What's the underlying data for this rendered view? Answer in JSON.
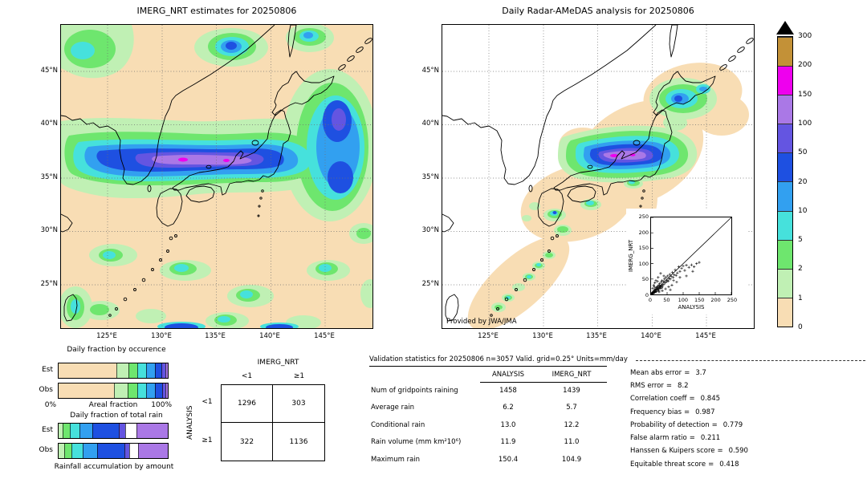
{
  "colorbar": {
    "units": "mm/day",
    "tick_labels": [
      "300",
      "200",
      "150",
      "100",
      "50",
      "20",
      "10",
      "5",
      "2",
      "1",
      "0"
    ],
    "colors_low_to_high": [
      "#f8ddb4",
      "#c0f0b4",
      "#6ee66e",
      "#46e1dc",
      "#32a0f0",
      "#1e50e1",
      "#6455e1",
      "#aa78e6",
      "#ee00ee",
      "#c39137"
    ],
    "overflow_color": "#000000"
  },
  "inset": {
    "x_ticks": [
      "0",
      "50",
      "100",
      "150",
      "200",
      "250"
    ],
    "y_ticks": [
      "0",
      "50",
      "100",
      "150",
      "200",
      "250"
    ]
  },
  "eq": "=",
  "chart_data": [
    {
      "type": "heatmap",
      "title": "IMERG_NRT estimates for 20250806",
      "x_ticks": [
        "125°E",
        "130°E",
        "135°E",
        "140°E",
        "145°E"
      ],
      "y_ticks": [
        "45°N",
        "40°N",
        "35°N",
        "30°N",
        "25°N"
      ],
      "levels_mm_per_day": [
        0,
        1,
        2,
        5,
        10,
        20,
        50,
        100,
        150,
        200,
        300
      ],
      "units": "mm/day",
      "notes": "Satellite rainfall estimate over Japan; intense WSW-ENE band (20-150 mm/day) across central/northern Honshu near 36-39N, second maximum east of Tohoku, scattered showers south of 32N."
    },
    {
      "type": "heatmap",
      "title": "Daily Radar-AMeDAS analysis for 20250806",
      "annotation": "Provided by JWA/JMA",
      "x_ticks": [
        "125°E",
        "130°E",
        "135°E",
        "140°E",
        "145°E"
      ],
      "y_ticks": [
        "45°N",
        "40°N",
        "35°N",
        "30°N",
        "25°N"
      ],
      "levels_mm_per_day": [
        0,
        1,
        2,
        5,
        10,
        20,
        50,
        100,
        150,
        200,
        300
      ],
      "units": "mm/day",
      "notes": "Radar-raingauge analysis inside shaded coverage mask; heavy band 20-200 mm/day across northern Honshu with purple/magenta core, rain over Hokkaido, showers along Kyushu and the Ryukyu islands."
    },
    {
      "type": "scatter",
      "xlabel": "ANALYSIS",
      "ylabel": "IMERG_NRT",
      "xlim": [
        0,
        250
      ],
      "ylim": [
        0,
        250
      ],
      "diagonal": true,
      "marker": "+",
      "points": [
        [
          2,
          1
        ],
        [
          3,
          4
        ],
        [
          4,
          2
        ],
        [
          5,
          7
        ],
        [
          5,
          20
        ],
        [
          6,
          3
        ],
        [
          7,
          9
        ],
        [
          8,
          5
        ],
        [
          8,
          30
        ],
        [
          9,
          12
        ],
        [
          10,
          8
        ],
        [
          10,
          25
        ],
        [
          11,
          15
        ],
        [
          12,
          6
        ],
        [
          12,
          38
        ],
        [
          13,
          18
        ],
        [
          14,
          10
        ],
        [
          15,
          13
        ],
        [
          15,
          45
        ],
        [
          16,
          22
        ],
        [
          17,
          9
        ],
        [
          18,
          16
        ],
        [
          19,
          25
        ],
        [
          20,
          14
        ],
        [
          20,
          42
        ],
        [
          21,
          20
        ],
        [
          22,
          28
        ],
        [
          22,
          55
        ],
        [
          23,
          17
        ],
        [
          24,
          12
        ],
        [
          25,
          8
        ],
        [
          25,
          30
        ],
        [
          26,
          22
        ],
        [
          27,
          35
        ],
        [
          28,
          19
        ],
        [
          29,
          26
        ],
        [
          30,
          24
        ],
        [
          30,
          68
        ],
        [
          31,
          40
        ],
        [
          32,
          28
        ],
        [
          33,
          21
        ],
        [
          34,
          45
        ],
        [
          35,
          12
        ],
        [
          35,
          31
        ],
        [
          36,
          26
        ],
        [
          38,
          42
        ],
        [
          40,
          33
        ],
        [
          40,
          60
        ],
        [
          42,
          50
        ],
        [
          44,
          38
        ],
        [
          45,
          18
        ],
        [
          46,
          55
        ],
        [
          48,
          41
        ],
        [
          50,
          46
        ],
        [
          52,
          60
        ],
        [
          54,
          44
        ],
        [
          55,
          25
        ],
        [
          56,
          52
        ],
        [
          58,
          65
        ],
        [
          60,
          15
        ],
        [
          60,
          50
        ],
        [
          63,
          58
        ],
        [
          65,
          30
        ],
        [
          66,
          72
        ],
        [
          69,
          55
        ],
        [
          70,
          45
        ],
        [
          72,
          64
        ],
        [
          75,
          80
        ],
        [
          78,
          62
        ],
        [
          80,
          40
        ],
        [
          82,
          70
        ],
        [
          86,
          90
        ],
        [
          90,
          55
        ],
        [
          90,
          75
        ],
        [
          95,
          85
        ],
        [
          100,
          92
        ],
        [
          105,
          78
        ],
        [
          110,
          60
        ],
        [
          110,
          95
        ],
        [
          118,
          88
        ],
        [
          126,
          96
        ],
        [
          130,
          75
        ],
        [
          134,
          90
        ],
        [
          142,
          100
        ],
        [
          150,
          104
        ]
      ],
      "notes": "Gridpoint scatter of IMERG_NRT vs analysis rain (mm/day); dense cluster below 80 mm/day; point values estimated."
    },
    {
      "type": "bar",
      "title": "Daily fraction by occurence",
      "stacked": true,
      "orientation": "horizontal",
      "categories": [
        "Est",
        "Obs"
      ],
      "xlabel": "Areal fraction",
      "x_min_label": "0%",
      "x_max_label": "100%",
      "xlim": [
        0,
        100
      ],
      "series_levels": [
        "0-1",
        "1-2",
        "2-5",
        "5-10",
        "10-20",
        "20-50",
        "50-100",
        "100-150"
      ],
      "colors": [
        "#f8ddb4",
        "#c0f0b4",
        "#6ee66e",
        "#46e1dc",
        "#32a0f0",
        "#1e50e1",
        "#6455e1",
        "#aa78e6"
      ],
      "series": [
        {
          "name": "Est",
          "values": [
            53,
            11,
            8,
            8,
            8,
            6,
            4,
            2
          ]
        },
        {
          "name": "Obs",
          "values": [
            51,
            12,
            9,
            8,
            8,
            7,
            3,
            2
          ]
        }
      ],
      "notes": "Fraction of area by daily rain category; segment widths estimated from pixels."
    },
    {
      "type": "bar",
      "title": "Daily fraction of total rain",
      "stacked": true,
      "orientation": "horizontal",
      "categories": [
        "Est",
        "Obs"
      ],
      "xlabel": "Rainfall accumulation by amount",
      "xlim": [
        0,
        100
      ],
      "series_levels": [
        "1-2",
        "2-5",
        "5-10",
        "10-20",
        "20-50",
        "50-100",
        "unshaded",
        "100-150"
      ],
      "colors": [
        "#c0f0b4",
        "#6ee66e",
        "#46e1dc",
        "#32a0f0",
        "#1e50e1",
        "#6455e1",
        "#ffffff",
        "#aa78e6"
      ],
      "series": [
        {
          "name": "Est",
          "values": [
            4,
            6,
            9,
            12,
            24,
            6,
            10,
            29
          ]
        },
        {
          "name": "Obs",
          "values": [
            5,
            7,
            10,
            13,
            25,
            5,
            8,
            27
          ]
        }
      ],
      "notes": "Fraction of total rainfall by amount category; segment widths estimated from pixels."
    },
    {
      "type": "table",
      "title_top": "IMERG_NRT",
      "title_left": "ANALYSIS",
      "columns": [
        "<1",
        "≥1"
      ],
      "row_labels": [
        "<1",
        "≥1"
      ],
      "rows": [
        [
          "1296",
          "303"
        ],
        [
          "322",
          "1136"
        ]
      ]
    },
    {
      "type": "table",
      "title": "Validation statistics for 20250806  n=3057 Valid. grid=0.25° Units=mm/day",
      "columns": [
        "ANALYSIS",
        "IMERG_NRT"
      ],
      "rows": [
        {
          "label": "Num of gridpoints raining",
          "values": [
            "1458",
            "1439"
          ]
        },
        {
          "label": "Average rain",
          "values": [
            "6.2",
            "5.7"
          ]
        },
        {
          "label": "Conditional rain",
          "values": [
            "13.0",
            "12.2"
          ]
        },
        {
          "label": "Rain volume (mm km²10⁶)",
          "values": [
            "11.9",
            "11.0"
          ]
        },
        {
          "label": "Maximum rain",
          "values": [
            "150.4",
            "104.9"
          ]
        }
      ],
      "stats": [
        {
          "label": "Mean abs error",
          "value": "3.7"
        },
        {
          "label": "RMS error",
          "value": "8.2"
        },
        {
          "label": "Correlation coeff",
          "value": "0.845"
        },
        {
          "label": "Frequency bias",
          "value": "0.987"
        },
        {
          "label": "Probability of detection",
          "value": "0.779"
        },
        {
          "label": "False alarm ratio",
          "value": "0.211"
        },
        {
          "label": "Hanssen & Kuipers score",
          "value": "0.590"
        },
        {
          "label": "Equitable threat score",
          "value": "0.418"
        }
      ]
    }
  ]
}
